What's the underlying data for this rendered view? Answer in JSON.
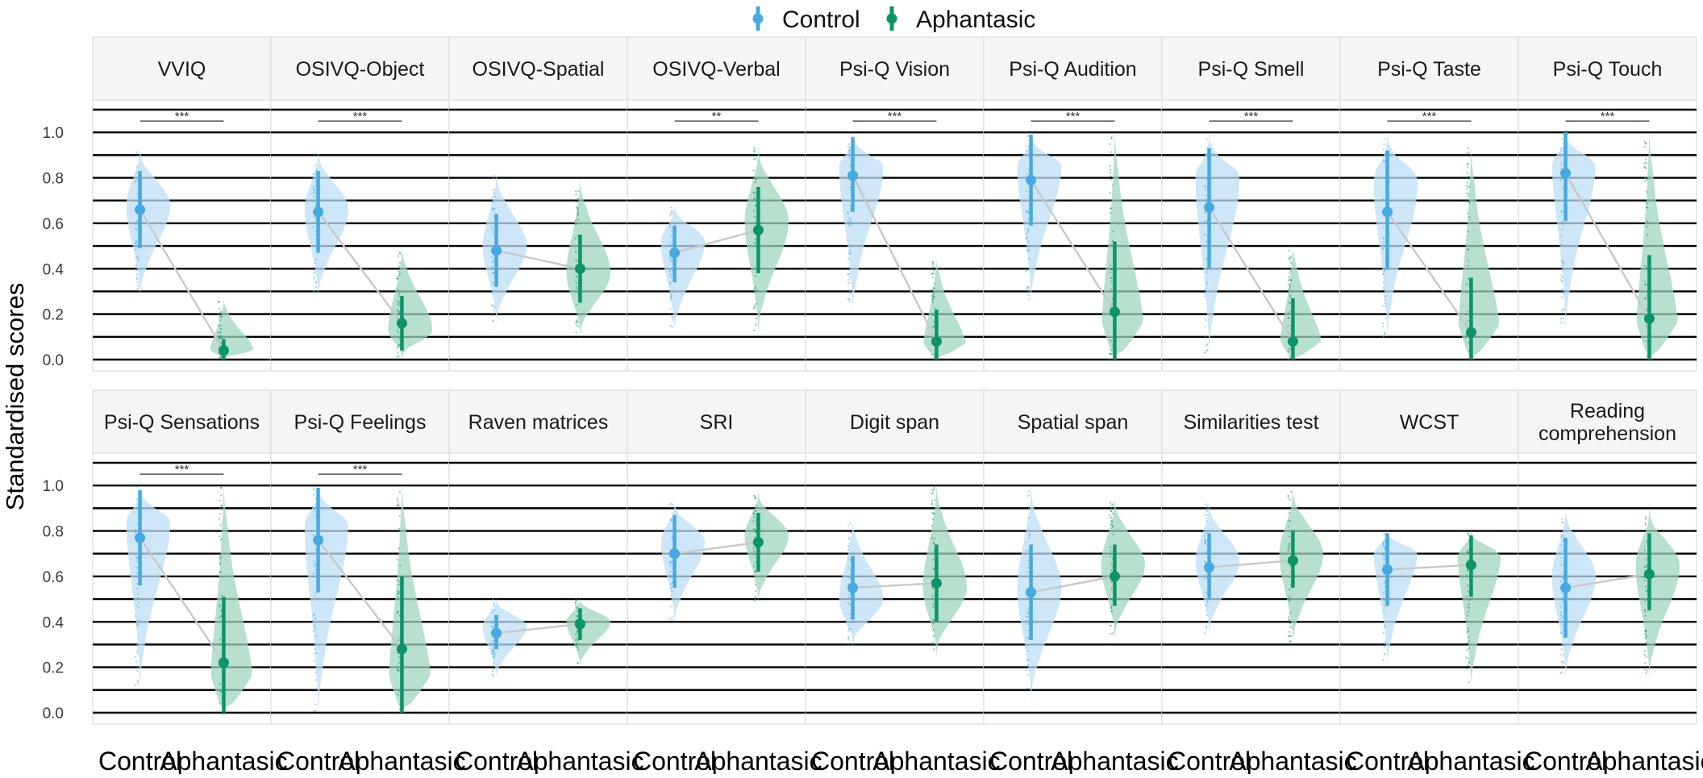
{
  "chart_data": {
    "type": "raincloud",
    "ylabel": "Standardised scores",
    "ylim": [
      0,
      1.1
    ],
    "yticks": [
      0.0,
      0.2,
      0.4,
      0.6,
      0.8,
      1.0
    ],
    "ytick_labels": [
      "0.0",
      "0.2",
      "0.4",
      "0.6",
      "0.8",
      "1.0"
    ],
    "categories": [
      "Control",
      "Aphantasic"
    ],
    "legend_position": "top",
    "series": [
      {
        "name": "Control",
        "color": "#46a9e1",
        "fill": "#bcdff5"
      },
      {
        "name": "Aphantasic",
        "color": "#0b9467",
        "fill": "#9fd6be"
      }
    ],
    "panels": [
      {
        "title": [
          "VVIQ"
        ],
        "sig": "***",
        "control": {
          "mean": 0.66,
          "low": 0.49,
          "high": 0.83,
          "dmin": 0.28,
          "dmax": 0.93,
          "mode": 0.68
        },
        "aphantasic": {
          "mean": 0.04,
          "low": 0.0,
          "high": 0.09,
          "dmin": 0.0,
          "dmax": 0.26,
          "mode": 0.03
        }
      },
      {
        "title": [
          "OSIVQ-Object"
        ],
        "sig": "***",
        "control": {
          "mean": 0.65,
          "low": 0.47,
          "high": 0.83,
          "dmin": 0.28,
          "dmax": 0.92,
          "mode": 0.66
        },
        "aphantasic": {
          "mean": 0.16,
          "low": 0.04,
          "high": 0.28,
          "dmin": 0.0,
          "dmax": 0.49,
          "mode": 0.13
        }
      },
      {
        "title": [
          "OSIVQ-Spatial"
        ],
        "sig": "",
        "control": {
          "mean": 0.48,
          "low": 0.32,
          "high": 0.64,
          "dmin": 0.16,
          "dmax": 0.82,
          "mode": 0.5
        },
        "aphantasic": {
          "mean": 0.4,
          "low": 0.25,
          "high": 0.55,
          "dmin": 0.1,
          "dmax": 0.79,
          "mode": 0.38
        }
      },
      {
        "title": [
          "OSIVQ-Verbal"
        ],
        "sig": "**",
        "control": {
          "mean": 0.47,
          "low": 0.34,
          "high": 0.59,
          "dmin": 0.13,
          "dmax": 0.68,
          "mode": 0.52
        },
        "aphantasic": {
          "mean": 0.57,
          "low": 0.38,
          "high": 0.76,
          "dmin": 0.12,
          "dmax": 0.94,
          "mode": 0.61
        }
      },
      {
        "title": [
          "Psi-Q Vision"
        ],
        "sig": "***",
        "control": {
          "mean": 0.81,
          "low": 0.65,
          "high": 0.98,
          "dmin": 0.22,
          "dmax": 1.0,
          "mode": 0.85
        },
        "aphantasic": {
          "mean": 0.08,
          "low": 0.0,
          "high": 0.22,
          "dmin": 0.0,
          "dmax": 0.44,
          "mode": 0.03
        }
      },
      {
        "title": [
          "Psi-Q Audition"
        ],
        "sig": "***",
        "control": {
          "mean": 0.79,
          "low": 0.59,
          "high": 0.99,
          "dmin": 0.26,
          "dmax": 1.0,
          "mode": 0.85
        },
        "aphantasic": {
          "mean": 0.21,
          "low": 0.0,
          "high": 0.52,
          "dmin": 0.0,
          "dmax": 1.0,
          "mode": 0.05
        }
      },
      {
        "title": [
          "Psi-Q Smell"
        ],
        "sig": "***",
        "control": {
          "mean": 0.67,
          "low": 0.4,
          "high": 0.93,
          "dmin": 0.03,
          "dmax": 1.0,
          "mode": 0.8
        },
        "aphantasic": {
          "mean": 0.08,
          "low": 0.0,
          "high": 0.27,
          "dmin": 0.0,
          "dmax": 0.5,
          "mode": 0.02
        }
      },
      {
        "title": [
          "Psi-Q Taste"
        ],
        "sig": "***",
        "control": {
          "mean": 0.65,
          "low": 0.4,
          "high": 0.92,
          "dmin": 0.1,
          "dmax": 1.0,
          "mode": 0.78
        },
        "aphantasic": {
          "mean": 0.12,
          "low": 0.0,
          "high": 0.36,
          "dmin": 0.0,
          "dmax": 0.93,
          "mode": 0.03
        }
      },
      {
        "title": [
          "Psi-Q Touch"
        ],
        "sig": "***",
        "control": {
          "mean": 0.82,
          "low": 0.61,
          "high": 1.0,
          "dmin": 0.15,
          "dmax": 1.0,
          "mode": 0.88
        },
        "aphantasic": {
          "mean": 0.18,
          "low": 0.0,
          "high": 0.46,
          "dmin": 0.0,
          "dmax": 1.0,
          "mode": 0.04
        }
      },
      {
        "title": [
          "Psi-Q Sensations"
        ],
        "sig": "***",
        "control": {
          "mean": 0.77,
          "low": 0.56,
          "high": 0.98,
          "dmin": 0.12,
          "dmax": 1.0,
          "mode": 0.85
        },
        "aphantasic": {
          "mean": 0.22,
          "low": 0.0,
          "high": 0.51,
          "dmin": 0.0,
          "dmax": 1.0,
          "mode": 0.05
        }
      },
      {
        "title": [
          "Psi-Q Feelings"
        ],
        "sig": "***",
        "control": {
          "mean": 0.76,
          "low": 0.53,
          "high": 0.99,
          "dmin": 0.0,
          "dmax": 1.0,
          "mode": 0.85
        },
        "aphantasic": {
          "mean": 0.28,
          "low": 0.0,
          "high": 0.6,
          "dmin": 0.0,
          "dmax": 1.0,
          "mode": 0.05
        }
      },
      {
        "title": [
          "Raven matrices"
        ],
        "sig": "",
        "control": {
          "mean": 0.35,
          "low": 0.28,
          "high": 0.43,
          "dmin": 0.16,
          "dmax": 0.5,
          "mode": 0.38
        },
        "aphantasic": {
          "mean": 0.39,
          "low": 0.32,
          "high": 0.46,
          "dmin": 0.21,
          "dmax": 0.5,
          "mode": 0.4
        }
      },
      {
        "title": [
          "SRI"
        ],
        "sig": "",
        "control": {
          "mean": 0.7,
          "low": 0.55,
          "high": 0.87,
          "dmin": 0.4,
          "dmax": 0.93,
          "mode": 0.75
        },
        "aphantasic": {
          "mean": 0.75,
          "low": 0.62,
          "high": 0.88,
          "dmin": 0.49,
          "dmax": 0.97,
          "mode": 0.78
        }
      },
      {
        "title": [
          "Digit span"
        ],
        "sig": "",
        "control": {
          "mean": 0.55,
          "low": 0.41,
          "high": 0.69,
          "dmin": 0.29,
          "dmax": 0.84,
          "mode": 0.5
        },
        "aphantasic": {
          "mean": 0.57,
          "low": 0.4,
          "high": 0.74,
          "dmin": 0.25,
          "dmax": 1.0,
          "mode": 0.55
        }
      },
      {
        "title": [
          "Spatial span"
        ],
        "sig": "",
        "control": {
          "mean": 0.53,
          "low": 0.32,
          "high": 0.74,
          "dmin": 0.05,
          "dmax": 1.0,
          "mode": 0.55
        },
        "aphantasic": {
          "mean": 0.6,
          "low": 0.47,
          "high": 0.74,
          "dmin": 0.33,
          "dmax": 0.94,
          "mode": 0.65
        }
      },
      {
        "title": [
          "Similarities test"
        ],
        "sig": "",
        "control": {
          "mean": 0.64,
          "low": 0.5,
          "high": 0.79,
          "dmin": 0.35,
          "dmax": 0.92,
          "mode": 0.67
        },
        "aphantasic": {
          "mean": 0.67,
          "low": 0.55,
          "high": 0.8,
          "dmin": 0.31,
          "dmax": 0.98,
          "mode": 0.7
        }
      },
      {
        "title": [
          "WCST"
        ],
        "sig": "",
        "control": {
          "mean": 0.63,
          "low": 0.47,
          "high": 0.79,
          "dmin": 0.22,
          "dmax": 0.8,
          "mode": 0.72
        },
        "aphantasic": {
          "mean": 0.65,
          "low": 0.51,
          "high": 0.78,
          "dmin": 0.13,
          "dmax": 0.8,
          "mode": 0.72
        }
      },
      {
        "title": [
          "Reading",
          "comprehension"
        ],
        "sig": "",
        "control": {
          "mean": 0.55,
          "low": 0.33,
          "high": 0.77,
          "dmin": 0.16,
          "dmax": 0.9,
          "mode": 0.6
        },
        "aphantasic": {
          "mean": 0.61,
          "low": 0.45,
          "high": 0.79,
          "dmin": 0.16,
          "dmax": 0.9,
          "mode": 0.65
        }
      }
    ]
  }
}
